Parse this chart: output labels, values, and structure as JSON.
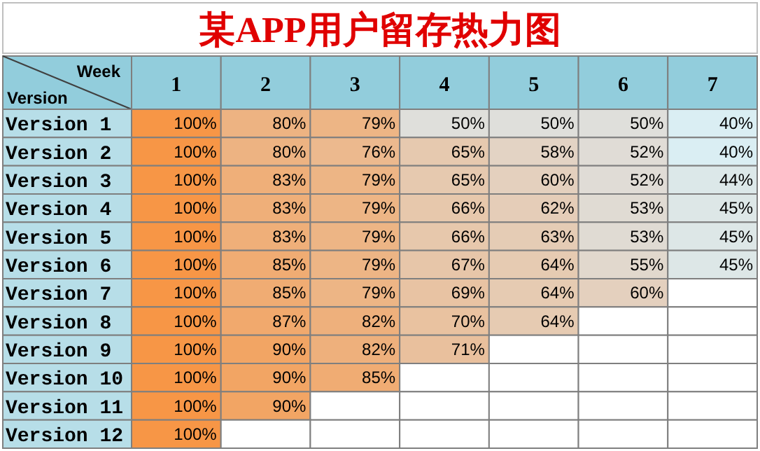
{
  "chart_data": {
    "type": "heatmap",
    "title": "某APP用户留存热力图",
    "xlabel": "Week",
    "ylabel": "Version",
    "categories": [
      "1",
      "2",
      "3",
      "4",
      "5",
      "6",
      "7"
    ],
    "y_categories": [
      "Version 1",
      "Version 2",
      "Version 3",
      "Version 4",
      "Version 5",
      "Version 6",
      "Version 7",
      "Version 8",
      "Version 9",
      "Version 10",
      "Version 11",
      "Version 12"
    ],
    "cells": [
      [
        100,
        80,
        79,
        50,
        50,
        50,
        40
      ],
      [
        100,
        80,
        76,
        65,
        58,
        52,
        40
      ],
      [
        100,
        83,
        79,
        65,
        60,
        52,
        44
      ],
      [
        100,
        83,
        79,
        66,
        62,
        53,
        45
      ],
      [
        100,
        83,
        79,
        66,
        63,
        53,
        45
      ],
      [
        100,
        85,
        79,
        67,
        64,
        55,
        45
      ],
      [
        100,
        85,
        79,
        69,
        64,
        60,
        null
      ],
      [
        100,
        87,
        82,
        70,
        64,
        null,
        null
      ],
      [
        100,
        90,
        82,
        71,
        null,
        null,
        null
      ],
      [
        100,
        90,
        85,
        null,
        null,
        null,
        null
      ],
      [
        100,
        90,
        null,
        null,
        null,
        null,
        null
      ],
      [
        100,
        null,
        null,
        null,
        null,
        null,
        null
      ]
    ],
    "cell_labels": [
      [
        "100%",
        "80%",
        "79%",
        "50%",
        "50%",
        "50%",
        "40%"
      ],
      [
        "100%",
        "80%",
        "76%",
        "65%",
        "58%",
        "52%",
        "40%"
      ],
      [
        "100%",
        "83%",
        "79%",
        "65%",
        "60%",
        "52%",
        "44%"
      ],
      [
        "100%",
        "83%",
        "79%",
        "66%",
        "62%",
        "53%",
        "45%"
      ],
      [
        "100%",
        "83%",
        "79%",
        "66%",
        "63%",
        "53%",
        "45%"
      ],
      [
        "100%",
        "85%",
        "79%",
        "67%",
        "64%",
        "55%",
        "45%"
      ],
      [
        "100%",
        "85%",
        "79%",
        "69%",
        "64%",
        "60%",
        null
      ],
      [
        "100%",
        "87%",
        "82%",
        "70%",
        "64%",
        null,
        null
      ],
      [
        "100%",
        "90%",
        "82%",
        "71%",
        null,
        null,
        null
      ],
      [
        "100%",
        "90%",
        "85%",
        null,
        null,
        null,
        null
      ],
      [
        "100%",
        "90%",
        null,
        null,
        null,
        null,
        null
      ],
      [
        "100%",
        null,
        null,
        null,
        null,
        null,
        null
      ]
    ]
  }
}
